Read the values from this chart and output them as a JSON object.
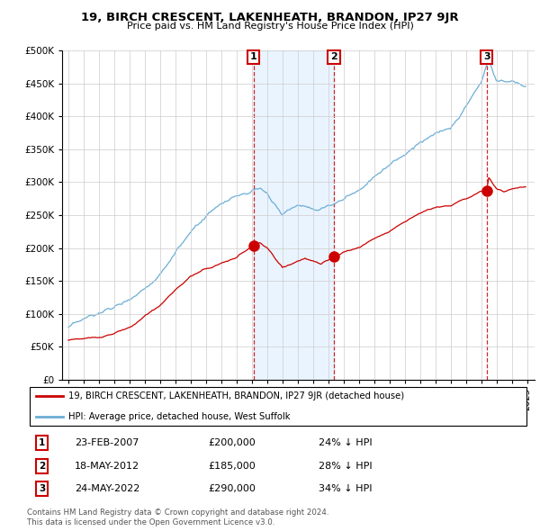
{
  "title": "19, BIRCH CRESCENT, LAKENHEATH, BRANDON, IP27 9JR",
  "subtitle": "Price paid vs. HM Land Registry's House Price Index (HPI)",
  "legend_entry1": "19, BIRCH CRESCENT, LAKENHEATH, BRANDON, IP27 9JR (detached house)",
  "legend_entry2": "HPI: Average price, detached house, West Suffolk",
  "transactions": [
    {
      "num": 1,
      "date": "23-FEB-2007",
      "date_x": 2007.12,
      "price": 200000,
      "price_str": "£200,000",
      "pct": "24% ↓ HPI"
    },
    {
      "num": 2,
      "date": "18-MAY-2012",
      "date_x": 2012.37,
      "price": 185000,
      "price_str": "£185,000",
      "pct": "28% ↓ HPI"
    },
    {
      "num": 3,
      "date": "24-MAY-2022",
      "date_x": 2022.37,
      "price": 290000,
      "price_str": "£290,000",
      "pct": "34% ↓ HPI"
    }
  ],
  "footer1": "Contains HM Land Registry data © Crown copyright and database right 2024.",
  "footer2": "This data is licensed under the Open Government Licence v3.0.",
  "hpi_color": "#6baed6",
  "price_color": "#cc0000",
  "marker_color": "#cc0000",
  "transaction_line_color": "#cc0000",
  "shade_color": "#ddeeff",
  "ylim": [
    0,
    500000
  ],
  "yticks": [
    0,
    50000,
    100000,
    150000,
    200000,
    250000,
    300000,
    350000,
    400000,
    450000,
    500000
  ],
  "xlim_start": 1994.6,
  "xlim_end": 2025.5,
  "shade_x1": 2007.12,
  "shade_x2": 2012.37
}
